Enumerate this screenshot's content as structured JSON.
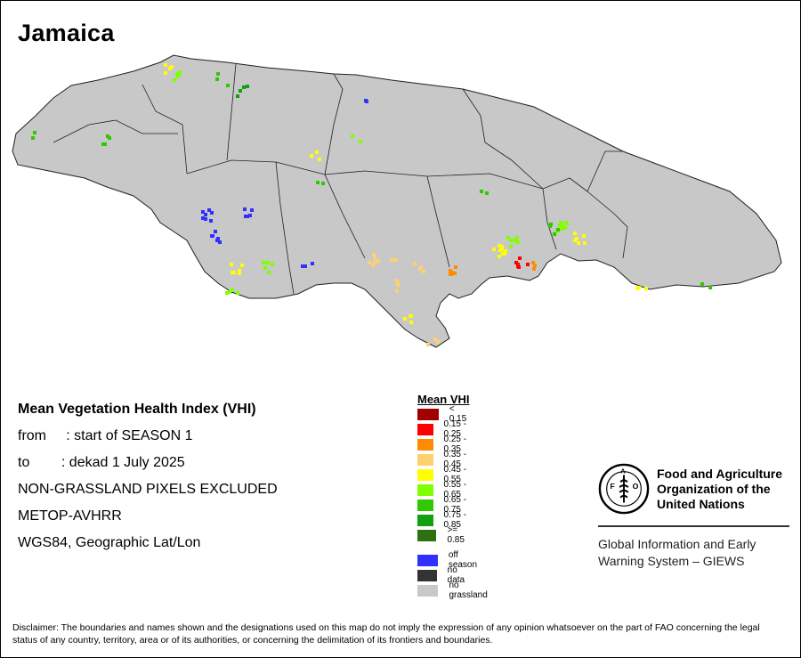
{
  "title": "Jamaica",
  "info": {
    "heading": "Mean Vegetation Health Index (VHI)",
    "from_label": "from",
    "from_value": ": start of SEASON 1",
    "to_label": "to",
    "to_value": ": dekad 1 July 2025",
    "line3": "NON-GRASSLAND PIXELS EXCLUDED",
    "line4": "METOP-AVHRR",
    "line5": "WGS84, Geographic Lat/Lon"
  },
  "legend": {
    "title": "Mean VHI",
    "items": [
      {
        "label": "< 0.15",
        "color": "#a00000"
      },
      {
        "label": "0.15 - 0.25",
        "color": "#ff0000"
      },
      {
        "label": "0.25 - 0.35",
        "color": "#ff8c00"
      },
      {
        "label": "0.35 - 0.45",
        "color": "#ffd070"
      },
      {
        "label": "0.45 - 0.55",
        "color": "#ffff00"
      },
      {
        "label": "0.55 - 0.65",
        "color": "#80ff00"
      },
      {
        "label": "0.65 - 0.75",
        "color": "#30c800"
      },
      {
        "label": "0.75 - 0.85",
        "color": "#10a010"
      },
      {
        "label": ">= 0.85",
        "color": "#2d7010"
      },
      {
        "label": "off season",
        "color": "#3030ff"
      },
      {
        "label": "no data",
        "color": "#333333"
      },
      {
        "label": "no grassland",
        "color": "#c8c8c8"
      }
    ]
  },
  "fao": {
    "org_line1": "Food and Agriculture",
    "org_line2": "Organization of the",
    "org_line3": "United Nations",
    "emblem_text": "FAO",
    "emblem_motto": "FIAT PANIS",
    "giews_line1": "Global Information and Early",
    "giews_line2": "Warning System – GIEWS"
  },
  "disclaimer": "Disclaimer: The boundaries and names shown and the designations used on this map do not imply the expression of any opinion whatsoever on the part of FAO concerning the legal status of any country, territory, area or of its authorities, or concerning the delimitation of its frontiers and boundaries.",
  "map": {
    "land_color": "#c8c8c8",
    "border_color": "#202020"
  }
}
